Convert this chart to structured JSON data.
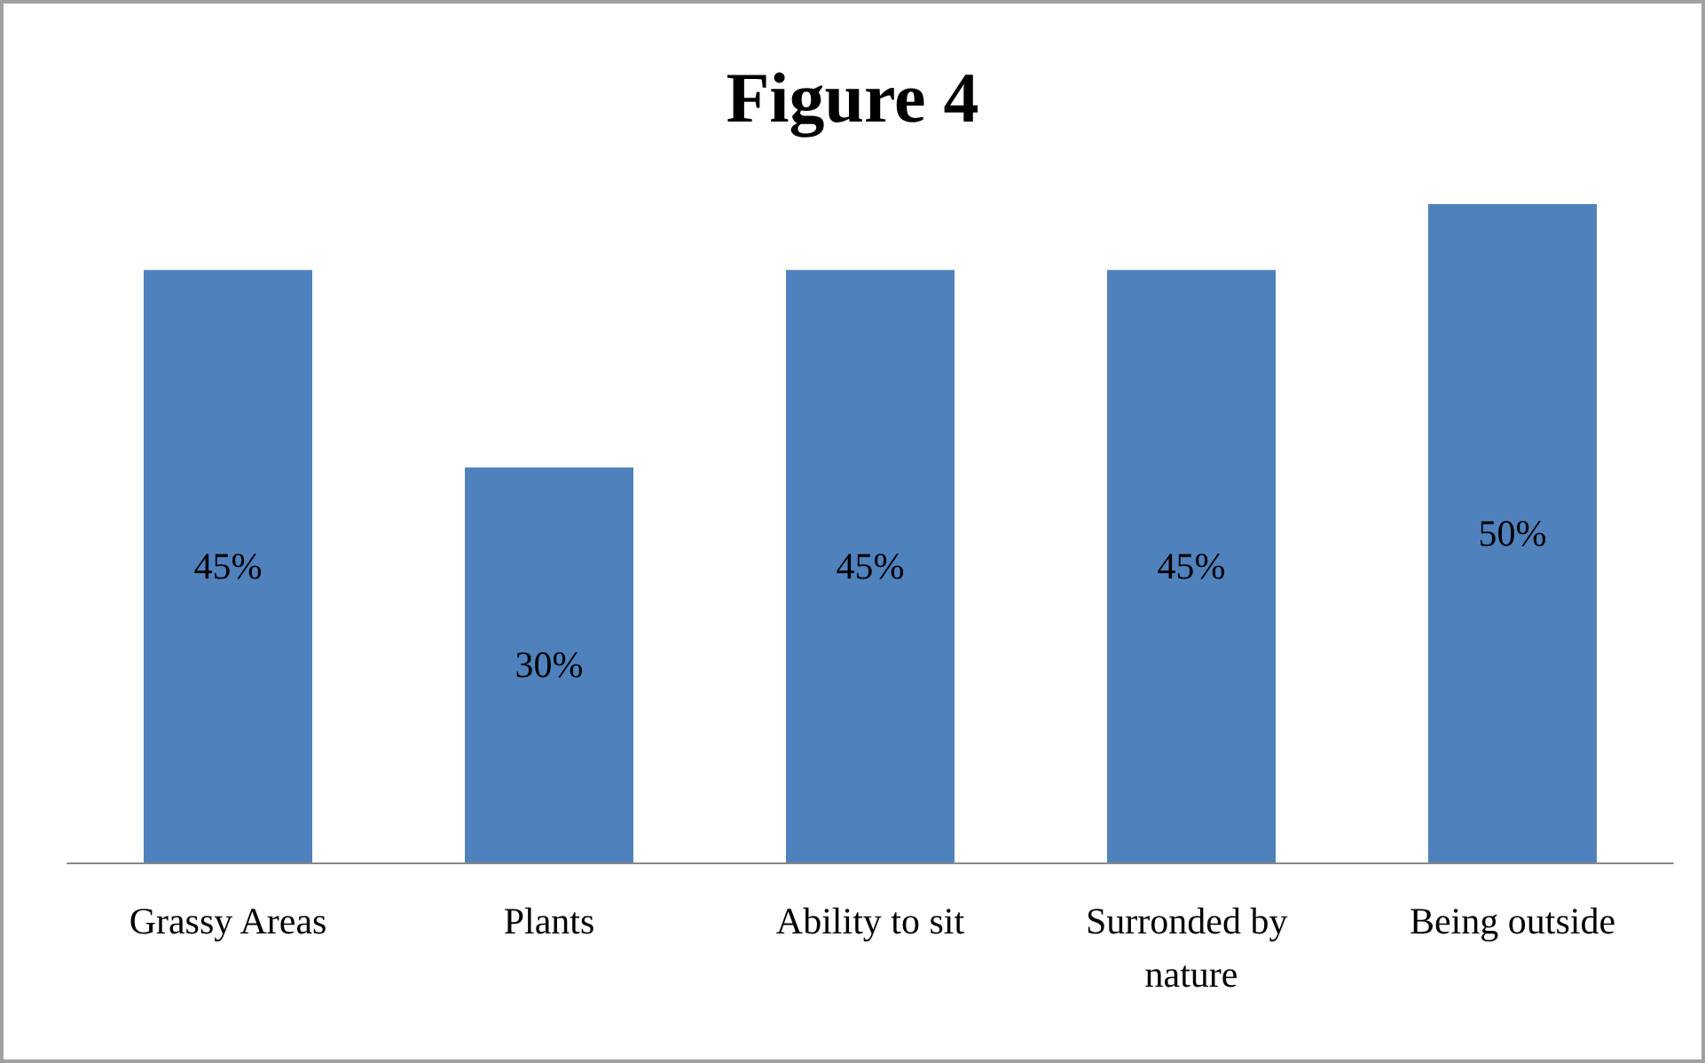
{
  "chart_data": {
    "type": "bar",
    "title": "Figure 4",
    "categories": [
      "Grassy Areas",
      "Plants",
      "Ability to sit",
      "Surronded by nature",
      "Being outside"
    ],
    "values": [
      45,
      30,
      45,
      45,
      50
    ],
    "value_labels": [
      "45%",
      "30%",
      "45%",
      "45%",
      "50%"
    ],
    "color": "#4f81bd"
  }
}
